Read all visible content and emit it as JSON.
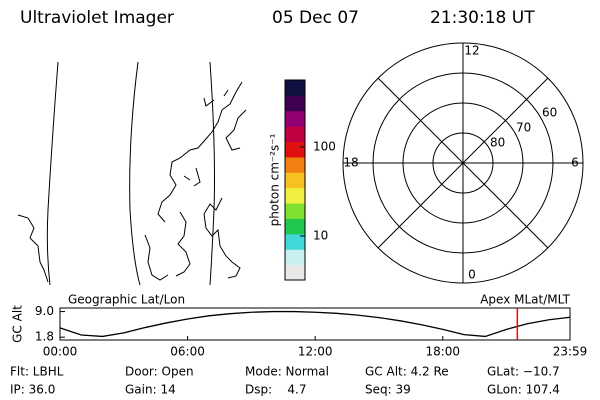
{
  "header": {
    "title": "Ultraviolet Imager",
    "date": "05 Dec 07",
    "time": "21:30:18 UT"
  },
  "map": {
    "left_label": "Geographic Lat/Lon",
    "right_label": "Apex MLat/MLT"
  },
  "colorbar": {
    "label": "photon cm⁻²s⁻¹",
    "range": [
      3.2,
      565
    ],
    "log": true,
    "ticks": [
      10,
      100
    ],
    "colors": [
      "#e8e8e8",
      "#c8f0f0",
      "#40d8d8",
      "#20c850",
      "#80e030",
      "#f0f040",
      "#f8c020",
      "#f08010",
      "#e01010",
      "#c00040",
      "#900070",
      "#400050",
      "#101040"
    ]
  },
  "polar": {
    "rlim": [
      90,
      50
    ],
    "rings": [
      60,
      70,
      80
    ],
    "mlt_ticks": [
      0,
      6,
      12,
      18
    ]
  },
  "chart_data": {
    "type": "line",
    "ylabel": "GC Alt",
    "x": [
      0,
      1,
      2,
      3,
      4,
      5,
      6,
      7,
      8,
      9,
      10,
      11,
      12,
      13,
      14,
      15,
      16,
      17,
      18,
      19,
      20,
      21,
      22,
      23,
      23.983
    ],
    "series": [
      {
        "name": "GC Alt",
        "color": "#000000",
        "values": [
          4.4,
          2.4,
          2.0,
          3.0,
          4.5,
          5.8,
          6.9,
          7.8,
          8.4,
          8.8,
          9.0,
          9.0,
          8.8,
          8.5,
          8.0,
          7.3,
          6.4,
          5.3,
          4.0,
          2.5,
          2.0,
          4.0,
          5.6,
          6.7,
          7.4
        ]
      }
    ],
    "xlim": [
      0,
      23.983
    ],
    "xticks": [
      {
        "value": 0,
        "label": "00:00"
      },
      {
        "value": 6,
        "label": "06:00"
      },
      {
        "value": 12,
        "label": "12:00"
      },
      {
        "value": 18,
        "label": "18:00"
      },
      {
        "value": 23.983,
        "label": "23:59"
      }
    ],
    "ylim": [
      1.0,
      10.0
    ],
    "yticks": [
      {
        "value": 1.8,
        "label": "1.8"
      },
      {
        "value": 9.0,
        "label": "9.0"
      }
    ],
    "marker_x": 21.505,
    "marker_color": "#ff0000"
  },
  "info": {
    "rows": [
      [
        "Flt: LBHL",
        "Door: Open",
        "Mode: Normal",
        "GC Alt: 4.2 Re",
        "GLat: −10.7"
      ],
      [
        "IP: 36.0",
        "Gain: 14",
        "Dsp:    4.7",
        "Seq: 39",
        "GLon: 107.4"
      ]
    ]
  }
}
